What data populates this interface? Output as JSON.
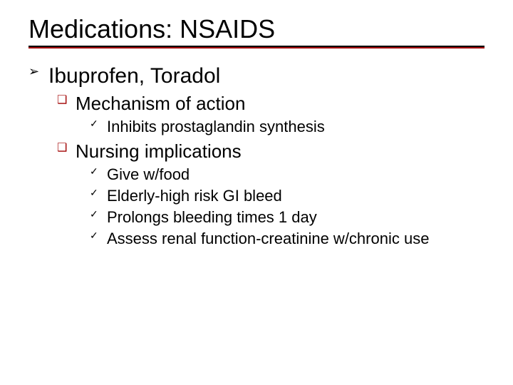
{
  "slide": {
    "title": "Medications: NSAIDS",
    "title_fontsize": 36,
    "title_underline_color": "#000000",
    "accent_line_color": "#a00000",
    "background_color": "#ffffff",
    "text_color": "#000000",
    "bullets": {
      "level1": {
        "glyph": "➢",
        "color": "#000000",
        "fontsize": 30
      },
      "level2": {
        "glyph": "❑",
        "color": "#a00000",
        "fontsize": 26
      },
      "level3": {
        "glyph": "✓",
        "color": "#000000",
        "fontsize": 22
      }
    },
    "items": [
      {
        "level": 1,
        "text": "Ibuprofen, Toradol"
      },
      {
        "level": 2,
        "text": "Mechanism of action"
      },
      {
        "level": 3,
        "text": "Inhibits prostaglandin synthesis"
      },
      {
        "level": 2,
        "text": "Nursing implications"
      },
      {
        "level": 3,
        "text": "Give w/food"
      },
      {
        "level": 3,
        "text": "Elderly-high risk GI bleed"
      },
      {
        "level": 3,
        "text": "Prolongs bleeding times 1 day"
      },
      {
        "level": 3,
        "text": "Assess renal function-creatinine w/chronic use"
      }
    ]
  }
}
